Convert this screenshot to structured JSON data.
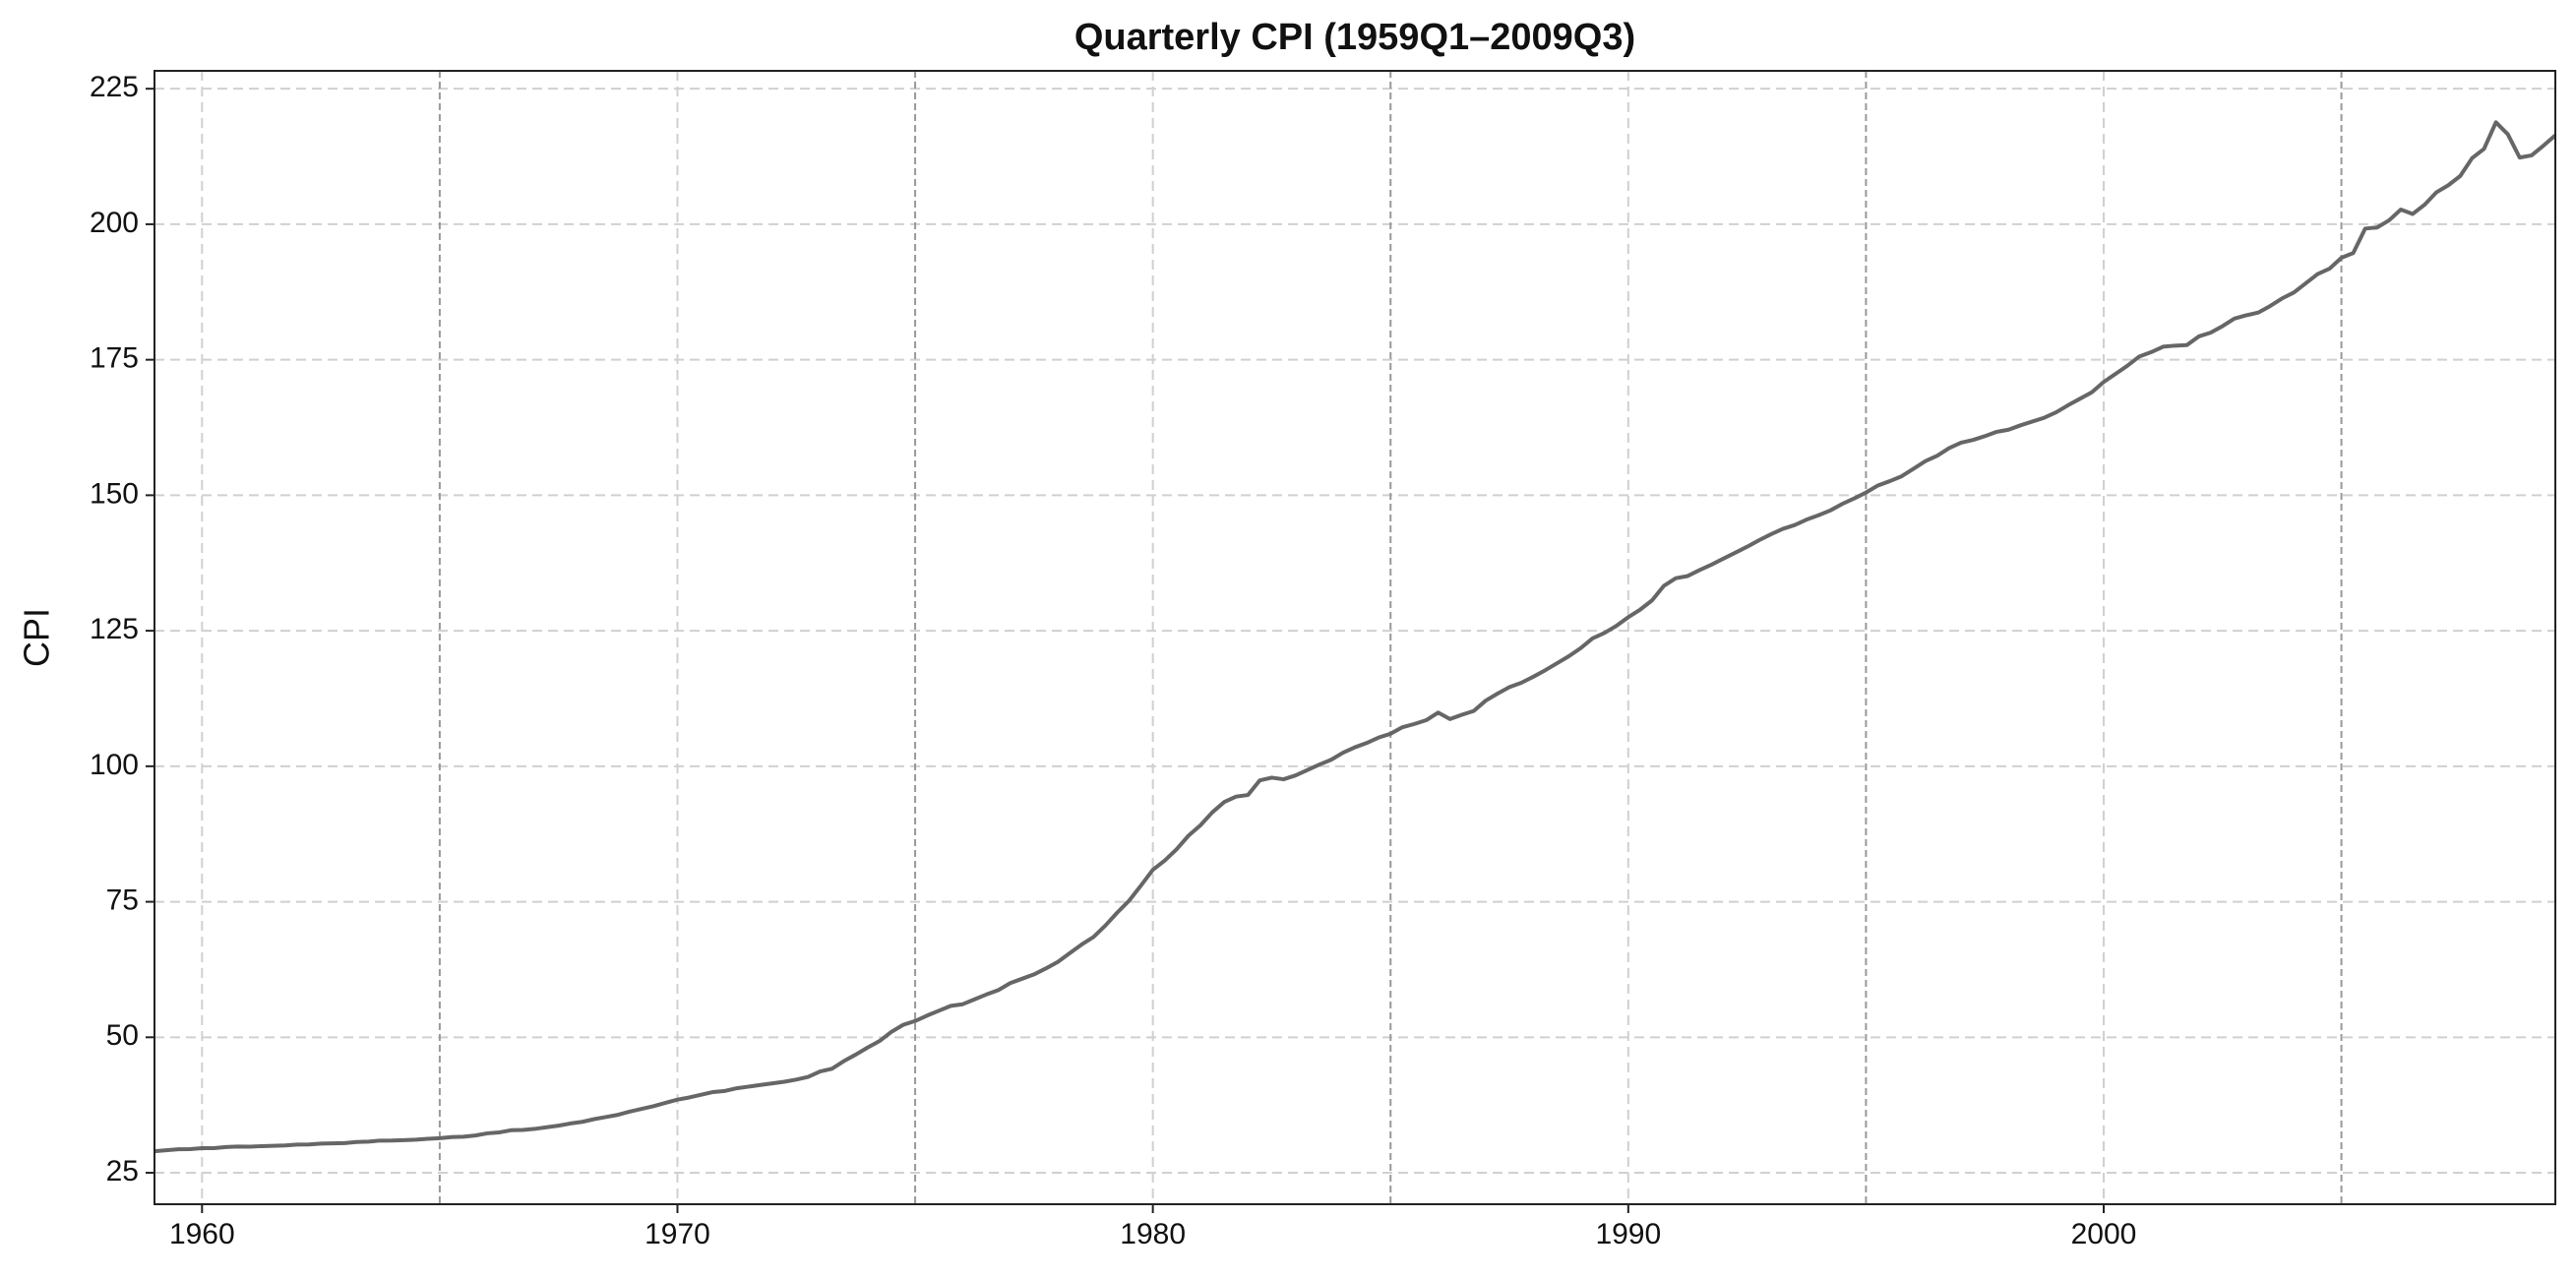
{
  "chart_data": {
    "type": "line",
    "title": "Quarterly CPI (1959Q1–2009Q3)",
    "ylabel": "CPI",
    "color": "#666666",
    "grid": true,
    "vline_color": "#999999",
    "xlim": [
      1959,
      2009.5
    ],
    "xticks": [
      1960,
      1970,
      1980,
      1990,
      2000
    ],
    "ylim": [
      19.2,
      228.3
    ],
    "yticks": [
      25,
      50,
      75,
      100,
      125,
      150,
      175,
      200,
      225
    ],
    "vlines": [
      1965,
      1975,
      1985,
      1995,
      2005
    ],
    "x": [
      1959,
      1959.25,
      1959.5,
      1959.75,
      1960,
      1960.25,
      1960.5,
      1960.75,
      1961,
      1961.25,
      1961.5,
      1961.75,
      1962,
      1962.25,
      1962.5,
      1962.75,
      1963,
      1963.25,
      1963.5,
      1963.75,
      1964,
      1964.25,
      1964.5,
      1964.75,
      1965,
      1965.25,
      1965.5,
      1965.75,
      1966,
      1966.25,
      1966.5,
      1966.75,
      1967,
      1967.25,
      1967.5,
      1967.75,
      1968,
      1968.25,
      1968.5,
      1968.75,
      1969,
      1969.25,
      1969.5,
      1969.75,
      1970,
      1970.25,
      1970.5,
      1970.75,
      1971,
      1971.25,
      1971.5,
      1971.75,
      1972,
      1972.25,
      1972.5,
      1972.75,
      1973,
      1973.25,
      1973.5,
      1973.75,
      1974,
      1974.25,
      1974.5,
      1974.75,
      1975,
      1975.25,
      1975.5,
      1975.75,
      1976,
      1976.25,
      1976.5,
      1976.75,
      1977,
      1977.25,
      1977.5,
      1977.75,
      1978,
      1978.25,
      1978.5,
      1978.75,
      1979,
      1979.25,
      1979.5,
      1979.75,
      1980,
      1980.25,
      1980.5,
      1980.75,
      1981,
      1981.25,
      1981.5,
      1981.75,
      1982,
      1982.25,
      1982.5,
      1982.75,
      1983,
      1983.25,
      1983.5,
      1983.75,
      1984,
      1984.25,
      1984.5,
      1984.75,
      1985,
      1985.25,
      1985.5,
      1985.75,
      1986,
      1986.25,
      1986.5,
      1986.75,
      1987,
      1987.25,
      1987.5,
      1987.75,
      1988,
      1988.25,
      1988.5,
      1988.75,
      1989,
      1989.25,
      1989.5,
      1989.75,
      1990,
      1990.25,
      1990.5,
      1990.75,
      1991,
      1991.25,
      1991.5,
      1991.75,
      1992,
      1992.25,
      1992.5,
      1992.75,
      1993,
      1993.25,
      1993.5,
      1993.75,
      1994,
      1994.25,
      1994.5,
      1994.75,
      1995,
      1995.25,
      1995.5,
      1995.75,
      1996,
      1996.25,
      1996.5,
      1996.75,
      1997,
      1997.25,
      1997.5,
      1997.75,
      1998,
      1998.25,
      1998.5,
      1998.75,
      1999,
      1999.25,
      1999.5,
      1999.75,
      2000,
      2000.25,
      2000.5,
      2000.75,
      2001,
      2001.25,
      2001.5,
      2001.75,
      2002,
      2002.25,
      2002.5,
      2002.75,
      2003,
      2003.25,
      2003.5,
      2003.75,
      2004,
      2004.25,
      2004.5,
      2004.75,
      2005,
      2005.25,
      2005.5,
      2005.75,
      2006,
      2006.25,
      2006.5,
      2006.75,
      2007,
      2007.25,
      2007.5,
      2007.75,
      2008,
      2008.25,
      2008.5,
      2008.75,
      2009,
      2009.25,
      2009.5
    ],
    "values": [
      28.98,
      29.15,
      29.35,
      29.37,
      29.54,
      29.55,
      29.75,
      29.84,
      29.81,
      29.92,
      29.98,
      30.04,
      30.21,
      30.22,
      30.38,
      30.44,
      30.48,
      30.69,
      30.75,
      30.94,
      30.95,
      31.02,
      31.12,
      31.28,
      31.38,
      31.58,
      31.65,
      31.88,
      32.28,
      32.45,
      32.85,
      32.9,
      33.1,
      33.4,
      33.7,
      34.1,
      34.4,
      34.9,
      35.3,
      35.7,
      36.3,
      36.8,
      37.3,
      37.9,
      38.5,
      38.9,
      39.4,
      39.9,
      40.1,
      40.6,
      40.9,
      41.2,
      41.5,
      41.8,
      42.2,
      42.7,
      43.7,
      44.2,
      45.6,
      46.8,
      48.1,
      49.3,
      51.0,
      52.3,
      53.0,
      54.0,
      54.9,
      55.8,
      56.1,
      57.0,
      57.9,
      58.7,
      60.0,
      60.8,
      61.6,
      62.7,
      63.9,
      65.5,
      67.1,
      68.5,
      70.6,
      73.0,
      75.2,
      78.0,
      80.9,
      82.6,
      84.7,
      87.2,
      89.1,
      91.5,
      93.4,
      94.4,
      94.7,
      97.4,
      97.9,
      97.6,
      98.3,
      99.3,
      100.3,
      101.2,
      102.5,
      103.5,
      104.3,
      105.3,
      106.0,
      107.2,
      107.8,
      108.5,
      109.9,
      108.7,
      109.5,
      110.2,
      112.1,
      113.4,
      114.6,
      115.4,
      116.5,
      117.7,
      119.0,
      120.3,
      121.8,
      123.6,
      124.6,
      125.9,
      127.5,
      128.9,
      130.6,
      133.3,
      134.7,
      135.1,
      136.2,
      137.2,
      138.3,
      139.4,
      140.5,
      141.7,
      142.8,
      143.8,
      144.5,
      145.5,
      146.3,
      147.2,
      148.4,
      149.4,
      150.5,
      151.8,
      152.6,
      153.5,
      154.9,
      156.3,
      157.3,
      158.7,
      159.7,
      160.2,
      160.9,
      161.7,
      162.1,
      162.9,
      163.6,
      164.3,
      165.3,
      166.6,
      167.8,
      169.0,
      170.9,
      172.4,
      173.9,
      175.6,
      176.4,
      177.4,
      177.6,
      177.7,
      179.3,
      180.0,
      181.2,
      182.6,
      183.2,
      183.7,
      184.9,
      186.3,
      187.4,
      189.1,
      190.8,
      191.8,
      193.8,
      194.7,
      199.2,
      199.4,
      200.7,
      202.7,
      201.9,
      203.6,
      205.9,
      207.2,
      208.9,
      212.2,
      213.9,
      218.8,
      216.6,
      212.3,
      212.7,
      214.5,
      216.4
    ]
  }
}
